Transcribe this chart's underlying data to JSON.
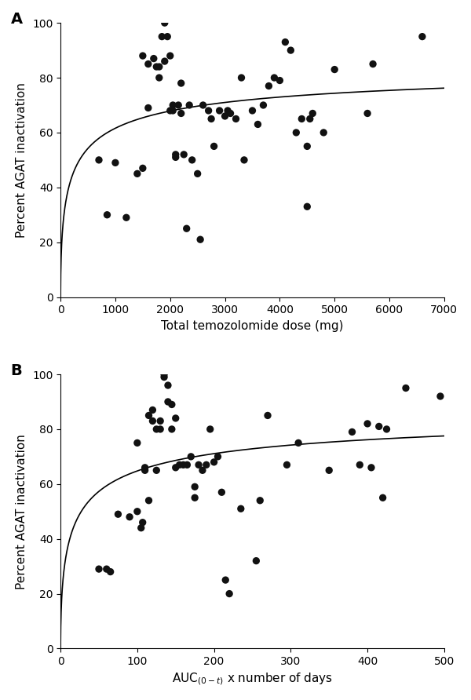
{
  "panel_A": {
    "label": "A",
    "xlabel": "Total temozolomide dose (mg)",
    "ylabel": "Percent AGAT inactivation",
    "xlim": [
      0,
      7000
    ],
    "ylim": [
      0,
      100
    ],
    "xticks": [
      0,
      1000,
      2000,
      3000,
      4000,
      5000,
      6000,
      7000
    ],
    "yticks": [
      0,
      20,
      40,
      60,
      80,
      100
    ],
    "scatter_x": [
      700,
      850,
      1000,
      1200,
      1400,
      1500,
      1500,
      1600,
      1600,
      1700,
      1750,
      1800,
      1800,
      1850,
      1900,
      1900,
      1950,
      2000,
      2000,
      2050,
      2050,
      2100,
      2100,
      2150,
      2200,
      2200,
      2250,
      2300,
      2350,
      2400,
      2500,
      2550,
      2600,
      2700,
      2750,
      2800,
      2900,
      3000,
      3050,
      3100,
      3200,
      3300,
      3350,
      3500,
      3600,
      3700,
      3800,
      3900,
      4000,
      4100,
      4200,
      4300,
      4400,
      4500,
      4500,
      4550,
      4600,
      4800,
      5000,
      5600,
      5700,
      6600
    ],
    "scatter_y": [
      50,
      30,
      49,
      29,
      45,
      47,
      88,
      69,
      85,
      87,
      84,
      80,
      84,
      95,
      100,
      86,
      95,
      88,
      68,
      70,
      68,
      51,
      52,
      70,
      67,
      78,
      52,
      25,
      70,
      50,
      45,
      21,
      70,
      68,
      65,
      55,
      68,
      66,
      68,
      67,
      65,
      80,
      50,
      68,
      63,
      70,
      77,
      80,
      79,
      93,
      90,
      60,
      65,
      33,
      55,
      65,
      67,
      60,
      83,
      67,
      85,
      95
    ],
    "curve_Emax": 87,
    "curve_EC50": 200,
    "curve_n": 0.55
  },
  "panel_B": {
    "label": "B",
    "xlabel": "AUC$_{(0-t)}$ x number of days",
    "ylabel": "Percent AGAT inactivation",
    "xlim": [
      0,
      500
    ],
    "ylim": [
      0,
      100
    ],
    "xticks": [
      0,
      100,
      200,
      300,
      400,
      500
    ],
    "yticks": [
      0,
      20,
      40,
      60,
      80,
      100
    ],
    "scatter_x": [
      50,
      60,
      65,
      75,
      90,
      100,
      100,
      105,
      107,
      110,
      110,
      115,
      115,
      120,
      120,
      125,
      125,
      130,
      130,
      135,
      135,
      140,
      140,
      145,
      145,
      150,
      150,
      155,
      160,
      165,
      170,
      175,
      175,
      180,
      185,
      190,
      195,
      200,
      205,
      210,
      215,
      220,
      235,
      255,
      260,
      270,
      295,
      310,
      350,
      380,
      390,
      400,
      405,
      415,
      420,
      425,
      450,
      495
    ],
    "scatter_y": [
      29,
      29,
      28,
      49,
      48,
      75,
      50,
      44,
      46,
      65,
      66,
      54,
      85,
      87,
      83,
      80,
      65,
      80,
      83,
      100,
      99,
      96,
      90,
      89,
      80,
      84,
      66,
      67,
      67,
      67,
      70,
      55,
      59,
      67,
      65,
      67,
      80,
      68,
      70,
      57,
      25,
      20,
      51,
      32,
      54,
      85,
      67,
      75,
      65,
      79,
      67,
      82,
      66,
      81,
      55,
      80,
      95,
      92
    ],
    "curve_Emax": 90,
    "curve_EC50": 18,
    "curve_n": 0.55
  },
  "dot_color": "#111111",
  "dot_size": 45,
  "line_color": "#000000",
  "line_width": 1.2,
  "bg_color": "#ffffff",
  "font_size_label": 11,
  "font_size_tick": 10,
  "font_size_panel": 14
}
